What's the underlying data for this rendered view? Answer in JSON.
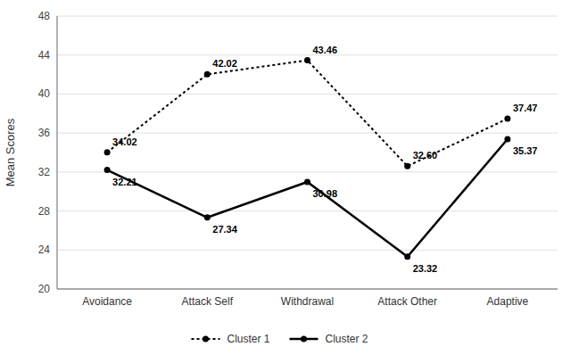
{
  "chart_data": {
    "type": "line",
    "categories": [
      "Avoidance",
      "Attack Self",
      "Withdrawal",
      "Attack Other",
      "Adaptive"
    ],
    "series": [
      {
        "name": "Cluster 1",
        "color": "#000000",
        "line_style": "dotted",
        "marker": "circle",
        "values": [
          34.02,
          42.02,
          43.46,
          32.6,
          37.47
        ],
        "value_labels": [
          "34.02",
          "42.02",
          "43.46",
          "32.60",
          "37.47"
        ]
      },
      {
        "name": "Cluster 2",
        "color": "#000000",
        "line_style": "solid",
        "marker": "circle",
        "values": [
          32.21,
          27.34,
          30.98,
          23.32,
          35.37
        ],
        "value_labels": [
          "32.21",
          "27.34",
          "30.98",
          "23.32",
          "35.37"
        ]
      }
    ],
    "ylabel": "Mean Scores",
    "ylim": [
      20,
      48
    ],
    "yticks": [
      20,
      24,
      28,
      32,
      36,
      40,
      44,
      48
    ],
    "grid": true,
    "data_labels": true,
    "legend": "bottom"
  }
}
